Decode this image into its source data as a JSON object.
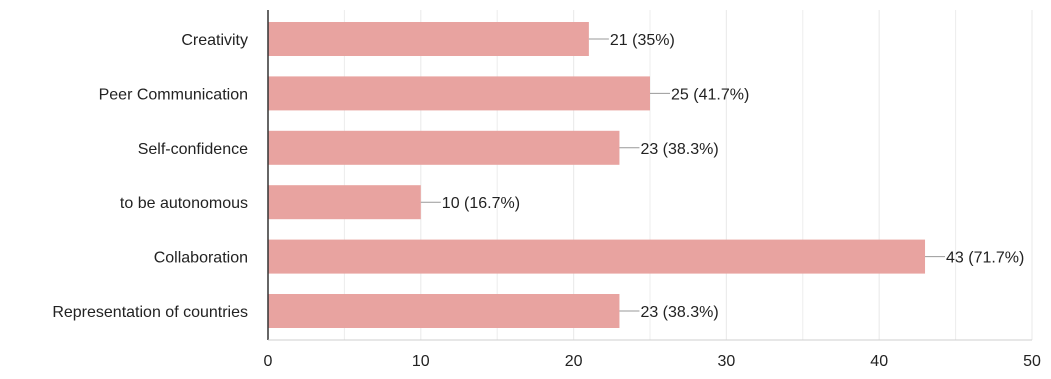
{
  "chart_data": {
    "type": "bar",
    "orientation": "horizontal",
    "categories": [
      "Creativity",
      "Peer Communication",
      "Self-confidence",
      "to be autonomous",
      "Collaboration",
      "Representation of countries"
    ],
    "values": [
      21,
      25,
      23,
      10,
      43,
      23
    ],
    "data_labels": [
      "21 (35%)",
      "25 (41.7%)",
      "23 (38.3%)",
      "10 (16.7%)",
      "43 (71.7%)",
      "23 (38.3%)"
    ],
    "x_ticks": [
      "0",
      "10",
      "20",
      "30",
      "40",
      "50"
    ],
    "xlim": [
      0,
      50
    ],
    "grid": true,
    "legend": "none",
    "title": "",
    "xlabel": "",
    "ylabel": "",
    "colors": {
      "bar": "#e8a3a0",
      "grid": "#ececec",
      "axis": "#333333",
      "leader": "#999999",
      "text": "#222222"
    }
  }
}
